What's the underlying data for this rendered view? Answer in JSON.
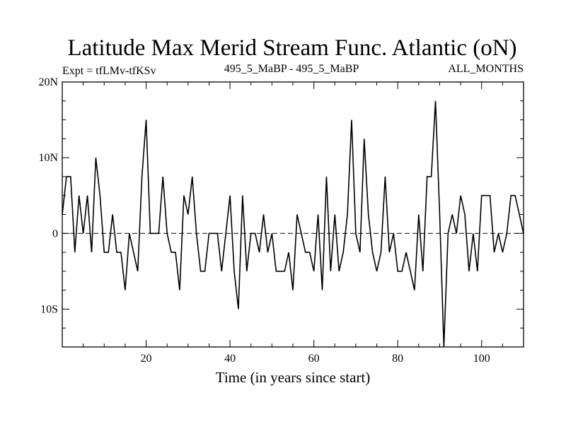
{
  "chart_data": {
    "type": "line",
    "title": "Latitude Max Merid Stream Func. Atlantic (oN)",
    "subtitle_left": "Expt = tfLMv-tfKSv",
    "subtitle_center": "495_5_MaBP - 495_5_MaBP",
    "subtitle_right": "ALL_MONTHS",
    "xlabel": "Time (in years since start)",
    "ylabel": "",
    "xlim": [
      0,
      110
    ],
    "ylim": [
      -15,
      20
    ],
    "x_ticks": [
      20,
      40,
      60,
      80,
      100
    ],
    "x_tick_labels": [
      "20",
      "40",
      "60",
      "80",
      "100"
    ],
    "y_ticks": [
      20,
      10,
      0,
      -10
    ],
    "y_tick_labels": [
      "20N",
      "10N",
      "0",
      "10S"
    ],
    "reference_line": 0,
    "series": [
      {
        "name": "Latitude Max Merid Stream Func. Atlantic",
        "x": [
          0,
          1,
          2,
          3,
          4,
          5,
          6,
          7,
          8,
          9,
          10,
          11,
          12,
          13,
          14,
          15,
          16,
          17,
          18,
          19,
          20,
          21,
          22,
          23,
          24,
          25,
          26,
          27,
          28,
          29,
          30,
          31,
          32,
          33,
          34,
          35,
          36,
          37,
          38,
          39,
          40,
          41,
          42,
          43,
          44,
          45,
          46,
          47,
          48,
          49,
          50,
          51,
          52,
          53,
          54,
          55,
          56,
          57,
          58,
          59,
          60,
          61,
          62,
          63,
          64,
          65,
          66,
          67,
          68,
          69,
          70,
          71,
          72,
          73,
          74,
          75,
          76,
          77,
          78,
          79,
          80,
          81,
          82,
          83,
          84,
          85,
          86,
          87,
          88,
          89,
          90,
          91,
          92,
          93,
          94,
          95,
          96,
          97,
          98,
          99,
          100,
          101,
          102,
          103,
          104,
          105,
          106,
          107,
          108,
          109,
          110
        ],
        "values": [
          2.5,
          7.5,
          7.5,
          -2.5,
          5,
          0,
          5,
          -2.5,
          10,
          5,
          -2.5,
          -2.5,
          2.5,
          -2.5,
          -2.5,
          -7.5,
          0,
          -2.5,
          -5,
          7.5,
          15,
          0,
          0,
          0,
          7.5,
          0,
          -2.5,
          -2.5,
          -7.5,
          5,
          2.5,
          7.5,
          0,
          -5,
          -5,
          0,
          0,
          0,
          -5,
          0,
          5,
          -5,
          -10,
          5,
          -5,
          0,
          0,
          -2.5,
          2.5,
          -2.5,
          0,
          -5,
          -5,
          -5,
          -2.5,
          -7.5,
          2.5,
          0,
          -2.5,
          -2.5,
          -5,
          2.5,
          -7.5,
          7.5,
          -5,
          2.5,
          -5,
          -2.5,
          2.5,
          15,
          0,
          -2.5,
          12.5,
          2.5,
          -2.5,
          -5,
          -2.5,
          7.5,
          -2.5,
          0,
          -5,
          -5,
          -2.5,
          -5,
          -7.5,
          2.5,
          -5,
          7.5,
          7.5,
          17.5,
          2.5,
          -15,
          0,
          2.5,
          0,
          5,
          2.5,
          -5,
          0,
          -5,
          5,
          5,
          5,
          -2.5,
          0,
          -2.5,
          0,
          5,
          5,
          2.5,
          0
        ]
      }
    ]
  }
}
